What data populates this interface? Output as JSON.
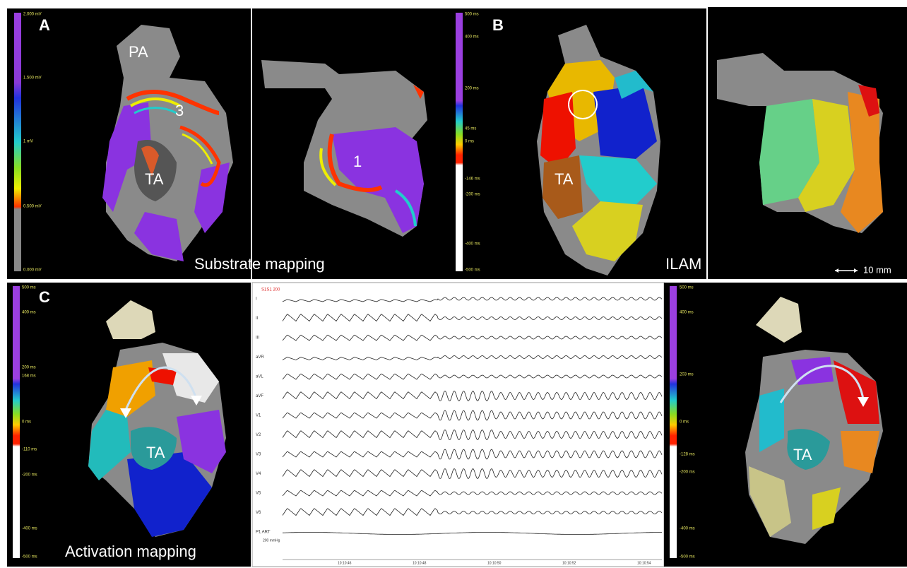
{
  "panels": {
    "a": {
      "label": "A",
      "structures": [
        "PA",
        "3",
        "TA",
        "1"
      ],
      "caption": "Substrate mapping",
      "scale": [
        "2.000 mV",
        "1.500 mV",
        "1 mV",
        "0.500 mV",
        "0.000 mV"
      ]
    },
    "b": {
      "label": "B",
      "structures": [
        "TA"
      ],
      "caption": "ILAM",
      "scale": [
        "500 ms",
        "400 ms",
        "200 ms",
        "45 ms",
        "0 ms",
        "-146 ms",
        "-200 ms",
        "-400 ms",
        "-500 ms"
      ],
      "scale_bar": "10 mm"
    },
    "c": {
      "label": "C",
      "structures": [
        "TA",
        "TA"
      ],
      "caption": "Activation mapping",
      "scale_left": [
        "500 ms",
        "400 ms",
        "200 ms",
        "168 ms",
        "0 ms",
        "-110 ms",
        "-200 ms",
        "-400 ms",
        "-500 ms"
      ],
      "scale_right": [
        "500 ms",
        "400 ms",
        "203 ms",
        "0 ms",
        "-128 ms",
        "-200 ms",
        "-400 ms",
        "-500 ms"
      ]
    },
    "ecg": {
      "annotation": "S1S1 200",
      "leads": [
        "I",
        "II",
        "III",
        "aVR",
        "aVL",
        "aVF",
        "V1",
        "V2",
        "V3",
        "V4",
        "V5",
        "V6",
        "P1 ART"
      ],
      "pressure": "200 mmHg",
      "times": [
        "10:10:46",
        "10:10:48",
        "10:10:50",
        "10:10:52",
        "10:10:54"
      ]
    }
  }
}
